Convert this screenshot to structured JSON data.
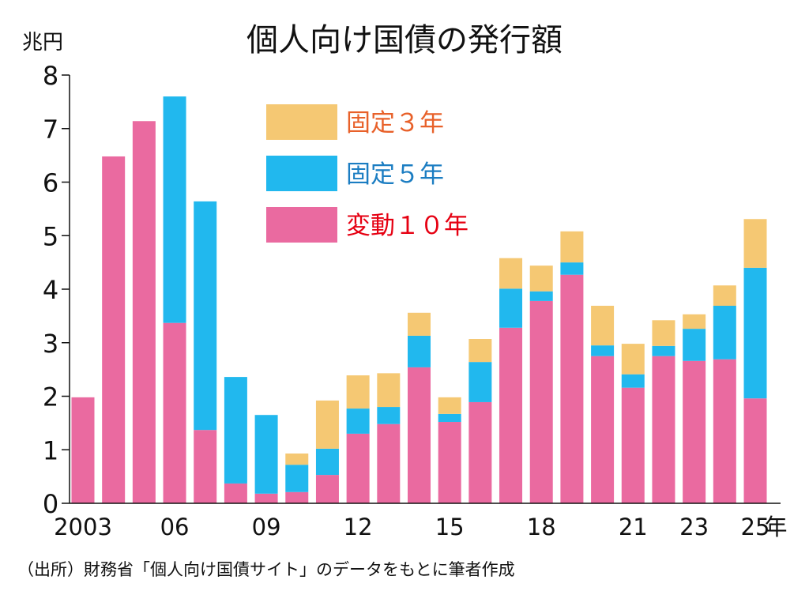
{
  "chart_data": {
    "type": "bar",
    "stacked": true,
    "title": "個人向け国債の発行額",
    "ylabel": "兆円",
    "xunit": "年",
    "ylim": [
      0,
      8
    ],
    "yticks": [
      "0",
      "1",
      "2",
      "3",
      "4",
      "5",
      "6",
      "7",
      "8"
    ],
    "grid": false,
    "legend_position": "top-center",
    "categories": [
      2003,
      2004,
      2005,
      2006,
      2007,
      2008,
      2009,
      2010,
      2011,
      2012,
      2013,
      2014,
      2015,
      2016,
      2017,
      2018,
      2019,
      2020,
      2021,
      2022,
      2023,
      2024,
      2025
    ],
    "xtick_labels": [
      {
        "category": 2003,
        "label": "2003"
      },
      {
        "category": 2006,
        "label": "06"
      },
      {
        "category": 2009,
        "label": "09"
      },
      {
        "category": 2012,
        "label": "12"
      },
      {
        "category": 2015,
        "label": "15"
      },
      {
        "category": 2018,
        "label": "18"
      },
      {
        "category": 2021,
        "label": "21"
      },
      {
        "category": 2023,
        "label": "23"
      },
      {
        "category": 2025,
        "label": "25"
      }
    ],
    "series": [
      {
        "name": "変動１０年",
        "color": "#ea6aa0",
        "text_color": "#e60012",
        "values": [
          1.98,
          6.48,
          7.14,
          3.37,
          1.37,
          0.37,
          0.18,
          0.21,
          0.53,
          1.3,
          1.48,
          2.54,
          1.52,
          1.89,
          3.28,
          3.78,
          4.27,
          2.75,
          2.16,
          2.75,
          2.66,
          2.69,
          1.96
        ]
      },
      {
        "name": "固定５年",
        "color": "#21b8ee",
        "text_color": "#1b7dc2",
        "values": [
          0,
          0,
          0,
          4.23,
          4.27,
          1.99,
          1.47,
          0.51,
          0.49,
          0.47,
          0.32,
          0.59,
          0.15,
          0.75,
          0.73,
          0.18,
          0.23,
          0.2,
          0.25,
          0.19,
          0.6,
          1.0,
          2.44
        ]
      },
      {
        "name": "固定３年",
        "color": "#f5c873",
        "text_color": "#e8612a",
        "values": [
          0,
          0,
          0,
          0,
          0,
          0,
          0,
          0.21,
          0.9,
          0.62,
          0.63,
          0.43,
          0.31,
          0.43,
          0.57,
          0.48,
          0.58,
          0.74,
          0.57,
          0.48,
          0.27,
          0.38,
          0.91
        ]
      }
    ],
    "legend_order": [
      "固定３年",
      "固定５年",
      "変動１０年"
    ]
  },
  "source_note": "（出所）財務省「個人向け国債サイト」のデータをもとに筆者作成"
}
